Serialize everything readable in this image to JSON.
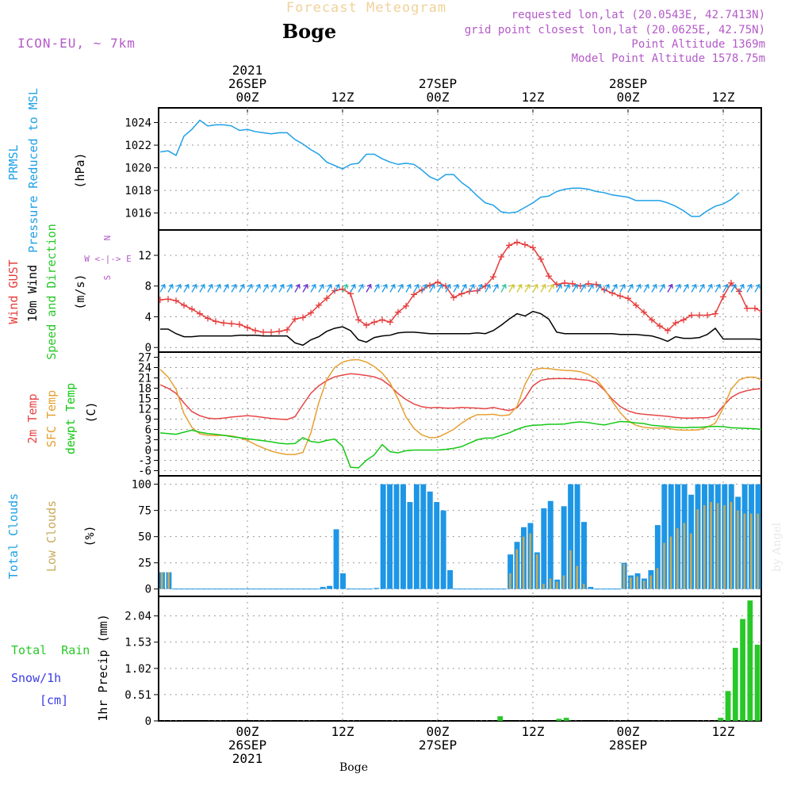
{
  "header": {
    "super_title": "Forecast Meteogram",
    "location": "Boge",
    "model": "ICON-EU, ~ 7km",
    "info_lines": [
      "requested lon,lat (20.0543E, 42.7413N)",
      "grid point closest lon,lat (20.0625E, 42.75N)",
      "Point Altitude 1369m",
      "Model Point Altitude 1578.75m"
    ],
    "footer_location": "Boge",
    "signature": "by Angel"
  },
  "time_axis": {
    "top_labels": [
      {
        "lines": [
          "2021",
          "26SEP",
          "00Z"
        ],
        "hour": 18
      },
      {
        "lines": [
          "12Z"
        ],
        "hour": 30
      },
      {
        "lines": [
          "27SEP",
          "00Z"
        ],
        "hour": 42
      },
      {
        "lines": [
          "12Z"
        ],
        "hour": 54
      },
      {
        "lines": [
          "28SEP",
          "00Z"
        ],
        "hour": 66
      },
      {
        "lines": [
          "12Z"
        ],
        "hour": 78
      }
    ],
    "bottom_labels": [
      {
        "lines": [
          "00Z",
          "26SEP",
          "2021"
        ],
        "hour": 18
      },
      {
        "lines": [
          "12Z"
        ],
        "hour": 30
      },
      {
        "lines": [
          "00Z",
          "27SEP"
        ],
        "hour": 42
      },
      {
        "lines": [
          "12Z"
        ],
        "hour": 54
      },
      {
        "lines": [
          "00Z",
          "28SEP"
        ],
        "hour": 66
      },
      {
        "lines": [
          "12Z"
        ],
        "hour": 78
      }
    ]
  },
  "colors": {
    "pressure": "#1ea0e6",
    "gust": "#e63c3c",
    "wind": "#000000",
    "temp2m": "#e64646",
    "sfc_temp": "#e6a032",
    "dewpoint": "#14c814",
    "total_clouds": "#1e96e6",
    "low_clouds": "#c8aa5a",
    "rain": "#28c828",
    "purple": "#b45ac8",
    "snow_label": "#3c3ce6"
  },
  "panel_labels": {
    "pressure": {
      "a": "PRMSL",
      "b": "Pressure Reduced to MSL",
      "unit": "(hPa)"
    },
    "wind": {
      "a": "Wind GUST",
      "b": "10m Wind",
      "c": "Speed and Direction",
      "unit": "(m/s)",
      "compass": [
        "N",
        "W <-|-> E",
        "S"
      ]
    },
    "temp": {
      "a": "2m Temp",
      "b": "SFC Temp",
      "c": "dewpt Temp",
      "unit": "(C)"
    },
    "clouds": {
      "a": "Total Clouds",
      "b": "Low Clouds",
      "unit": "(%)"
    },
    "precip": {
      "a": "Total  Rain",
      "b": "Snow/1h",
      "c": "[cm]",
      "unit": "1hr Precip (mm)"
    }
  },
  "chart_data": [
    {
      "type": "line",
      "ylim": [
        1014.5,
        1025.3
      ],
      "y_ticks": [
        1016,
        1018,
        1020,
        1022,
        1024
      ],
      "x_start": 7,
      "x_end": 83,
      "series": [
        {
          "name": "PRMSL",
          "values": [
            1021.4,
            1021.5,
            1021.1,
            1022.8,
            1023.4,
            1024.2,
            1023.7,
            1023.8,
            1023.8,
            1023.7,
            1023.3,
            1023.4,
            1023.2,
            1023.1,
            1023.0,
            1023.1,
            1023.1,
            1022.5,
            1022.1,
            1021.6,
            1021.2,
            1020.5,
            1020.2,
            1019.9,
            1020.3,
            1020.4,
            1021.2,
            1021.2,
            1020.8,
            1020.5,
            1020.3,
            1020.4,
            1020.3,
            1019.8,
            1019.2,
            1018.9,
            1019.4,
            1019.4,
            1018.7,
            1018.2,
            1017.5,
            1016.9,
            1016.7,
            1016.1,
            1016.0,
            1016.1,
            1016.5,
            1016.9,
            1017.4,
            1017.5,
            1017.9,
            1018.1,
            1018.2,
            1018.2,
            1018.1,
            1017.9,
            1017.8,
            1017.6,
            1017.5,
            1017.4,
            1017.1,
            1017.1,
            1017.1,
            1017.1,
            1016.9,
            1016.6,
            1016.2,
            1015.7,
            1015.7,
            1016.2,
            1016.6,
            1016.8,
            1017.2,
            1017.8
          ]
        }
      ]
    },
    {
      "type": "line",
      "ylim": [
        -0.6,
        15.3
      ],
      "y_ticks": [
        0,
        4,
        8,
        12
      ],
      "x_start": 7,
      "x_end": 83,
      "series": [
        {
          "name": "Wind GUST",
          "values": [
            6.2,
            6.3,
            6.1,
            5.5,
            5.0,
            4.4,
            3.8,
            3.4,
            3.2,
            3.1,
            3.0,
            2.6,
            2.2,
            2.0,
            2.0,
            2.1,
            2.3,
            3.7,
            3.9,
            4.5,
            5.5,
            6.4,
            7.4,
            7.6,
            7.0,
            3.6,
            2.9,
            3.3,
            3.6,
            3.3,
            4.6,
            5.4,
            6.9,
            7.5,
            8.1,
            8.5,
            8.0,
            6.5,
            7.0,
            7.3,
            7.4,
            8.0,
            9.2,
            11.8,
            13.3,
            13.7,
            13.4,
            13.0,
            11.5,
            9.3,
            8.2,
            8.4,
            8.3,
            8.0,
            8.3,
            8.2,
            7.5,
            7.1,
            6.7,
            6.4,
            5.5,
            4.6,
            3.6,
            2.8,
            2.2,
            3.2,
            3.6,
            4.2,
            4.2,
            4.2,
            4.4,
            6.6,
            8.4,
            7.3,
            5.1,
            5.1,
            4.6
          ]
        },
        {
          "name": "10m Wind",
          "values": [
            2.4,
            2.4,
            1.8,
            1.4,
            1.4,
            1.5,
            1.5,
            1.5,
            1.5,
            1.5,
            1.6,
            1.6,
            1.6,
            1.5,
            1.5,
            1.5,
            1.5,
            0.6,
            0.3,
            1.0,
            1.4,
            2.1,
            2.5,
            2.7,
            2.2,
            1.0,
            0.7,
            1.3,
            1.5,
            1.6,
            1.9,
            2.0,
            2.0,
            1.9,
            1.8,
            1.8,
            1.8,
            1.8,
            1.8,
            1.8,
            1.9,
            1.8,
            2.2,
            2.9,
            3.7,
            4.4,
            4.1,
            4.7,
            4.4,
            3.7,
            2.0,
            1.8,
            1.8,
            1.8,
            1.8,
            1.8,
            1.8,
            1.8,
            1.7,
            1.7,
            1.7,
            1.6,
            1.5,
            1.2,
            0.8,
            1.4,
            1.2,
            1.2,
            1.3,
            1.7,
            2.5,
            1.1,
            1.1,
            1.1,
            1.1,
            1.1,
            1.0
          ]
        }
      ],
      "arrow_hours": [
        7,
        8,
        9,
        10,
        11,
        12,
        13,
        14,
        15,
        16,
        17,
        18,
        19,
        20,
        21,
        22,
        23,
        24,
        25,
        26,
        27,
        28,
        29,
        30,
        31,
        32,
        33,
        34,
        35,
        36,
        37,
        38,
        39,
        40,
        41,
        42,
        43,
        44,
        45,
        46,
        47,
        48,
        49,
        50,
        51,
        52,
        53,
        54,
        55,
        56,
        57,
        58,
        59,
        60,
        61,
        62,
        63,
        64,
        65,
        66,
        67,
        68,
        69,
        70,
        71,
        72,
        73,
        74,
        75,
        76,
        77,
        78,
        79,
        80,
        81,
        82,
        83
      ]
    },
    {
      "type": "line",
      "ylim": [
        -7.5,
        28.5
      ],
      "y_ticks": [
        -6,
        -3,
        0,
        3,
        6,
        9,
        12,
        15,
        18,
        21,
        24,
        27
      ],
      "x_start": 7,
      "x_end": 83,
      "series": [
        {
          "name": "2m Temp",
          "values": [
            19.0,
            18.0,
            16.5,
            13.7,
            11.2,
            10.0,
            9.3,
            9.1,
            9.3,
            9.6,
            9.8,
            10.0,
            9.8,
            9.5,
            9.2,
            9.0,
            8.9,
            9.7,
            13.2,
            16.5,
            18.7,
            20.2,
            21.3,
            21.8,
            22.2,
            22.0,
            21.7,
            21.3,
            20.4,
            18.7,
            16.4,
            14.7,
            13.4,
            12.6,
            12.3,
            12.4,
            12.2,
            12.2,
            12.4,
            12.3,
            12.2,
            12.0,
            12.4,
            11.9,
            11.5,
            12.3,
            15.1,
            18.7,
            20.3,
            20.7,
            20.8,
            20.8,
            20.7,
            20.5,
            20.3,
            19.6,
            17.5,
            14.8,
            12.7,
            11.4,
            10.7,
            10.4,
            10.2,
            10.0,
            9.8,
            9.5,
            9.3,
            9.3,
            9.4,
            9.4,
            10.0,
            12.8,
            15.3,
            16.6,
            17.3,
            17.7,
            17.9
          ]
        },
        {
          "name": "SFC Temp",
          "values": [
            23.5,
            21.2,
            17.7,
            10.6,
            6.6,
            4.7,
            4.3,
            4.2,
            4.3,
            4.1,
            3.6,
            2.8,
            1.6,
            0.6,
            -0.3,
            -0.9,
            -1.3,
            -1.3,
            -0.7,
            5.0,
            13.8,
            20.5,
            24.0,
            25.6,
            26.2,
            26.3,
            25.6,
            24.3,
            22.4,
            19.5,
            14.9,
            9.6,
            6.3,
            4.4,
            3.6,
            3.7,
            4.8,
            6.0,
            7.8,
            9.3,
            10.3,
            10.3,
            10.4,
            10.0,
            10.2,
            12.7,
            19.1,
            23.3,
            23.8,
            23.7,
            23.4,
            23.2,
            23.1,
            22.8,
            22.0,
            20.6,
            17.8,
            14.2,
            10.9,
            8.5,
            7.2,
            6.6,
            6.4,
            6.4,
            6.4,
            5.9,
            5.8,
            5.8,
            5.9,
            6.7,
            7.8,
            12.2,
            17.7,
            20.4,
            21.2,
            21.2,
            20.2
          ]
        },
        {
          "name": "dewpt Temp",
          "values": [
            5.0,
            4.8,
            4.6,
            5.2,
            5.8,
            5.2,
            4.8,
            4.6,
            4.3,
            3.9,
            3.6,
            3.3,
            3.0,
            2.7,
            2.4,
            2.0,
            1.8,
            1.9,
            3.6,
            2.5,
            2.2,
            2.8,
            3.2,
            1.1,
            -5.0,
            -5.2,
            -3.0,
            -1.4,
            1.6,
            -0.5,
            -0.8,
            -0.2,
            0.0,
            0.0,
            0.0,
            0.0,
            0.2,
            0.5,
            1.0,
            2.0,
            3.0,
            3.5,
            3.5,
            4.3,
            5.0,
            6.0,
            6.8,
            7.2,
            7.3,
            7.5,
            7.5,
            7.6,
            8.0,
            8.2,
            8.0,
            7.6,
            7.3,
            7.8,
            8.3,
            8.2,
            7.9,
            7.7,
            7.2,
            7.0,
            6.8,
            6.6,
            6.5,
            6.6,
            6.6,
            6.8,
            6.9,
            6.8,
            6.5,
            6.4,
            6.3,
            6.2,
            6.0
          ]
        }
      ]
    },
    {
      "type": "bar",
      "ylim": [
        -7,
        108
      ],
      "y_ticks": [
        0,
        25,
        50,
        75,
        100
      ],
      "x_start": 7,
      "x_end": 83,
      "series": [
        {
          "name": "Total Clouds",
          "values": [
            16,
            16,
            0,
            0,
            0,
            0,
            0,
            0,
            0,
            0,
            0,
            0,
            0,
            0,
            0,
            0,
            0,
            0,
            0,
            0,
            0,
            0,
            0,
            0,
            2,
            3,
            57,
            15,
            0,
            0,
            0,
            0,
            1,
            100,
            100,
            100,
            100,
            83,
            100,
            100,
            93,
            83,
            75,
            18,
            0,
            0,
            0,
            0,
            0,
            0,
            0,
            0,
            33,
            45,
            59,
            63,
            35,
            77,
            84,
            9,
            79,
            100,
            100,
            64,
            2,
            0,
            0,
            0,
            0,
            25,
            13,
            15,
            10,
            18,
            61,
            100,
            100,
            100,
            100,
            90,
            100,
            100,
            100,
            100,
            100,
            100,
            88,
            100,
            100,
            100
          ]
        },
        {
          "name": "Low Clouds",
          "values": [
            16,
            16,
            0,
            0,
            0,
            0,
            0,
            0,
            0,
            0,
            0,
            0,
            0,
            0,
            0,
            0,
            0,
            0,
            0,
            0,
            0,
            0,
            0,
            0,
            0,
            0,
            0,
            0,
            0,
            0,
            0,
            0,
            0,
            0,
            0,
            0,
            0,
            0,
            0,
            0,
            0,
            0,
            0,
            0,
            0,
            0,
            0,
            0,
            0,
            0,
            0,
            0,
            15,
            38,
            50,
            53,
            33,
            5,
            10,
            7,
            13,
            37,
            22,
            5,
            0,
            0,
            0,
            0,
            0,
            24,
            11,
            12,
            8,
            13,
            20,
            44,
            50,
            58,
            63,
            53,
            76,
            80,
            83,
            82,
            80,
            83,
            75,
            72,
            72,
            72
          ]
        }
      ]
    },
    {
      "type": "bar",
      "ylim": [
        0,
        2.42
      ],
      "y_ticks": [
        0,
        0.51,
        1.02,
        1.53,
        2.04
      ],
      "x_start": 7,
      "x_end": 83,
      "series": [
        {
          "name": "1hr Precip",
          "values": [
            0,
            0,
            0,
            0,
            0,
            0,
            0,
            0,
            0,
            0,
            0,
            0,
            0,
            0,
            0,
            0,
            0,
            0,
            0,
            0,
            0,
            0,
            0,
            0,
            0,
            0,
            0,
            0,
            0,
            0,
            0,
            0,
            0,
            0,
            0,
            0,
            0,
            0,
            0,
            0,
            0,
            0,
            0,
            0,
            0,
            0,
            0.09,
            0,
            0,
            0,
            0,
            0,
            0,
            0,
            0.04,
            0.06,
            0,
            0,
            0,
            0,
            0,
            0,
            0,
            0,
            0,
            0,
            0,
            0,
            0,
            0,
            0,
            0,
            0,
            0,
            0,
            0,
            0.06,
            0.58,
            1.42,
            1.98,
            2.34,
            1.48
          ]
        }
      ]
    }
  ]
}
